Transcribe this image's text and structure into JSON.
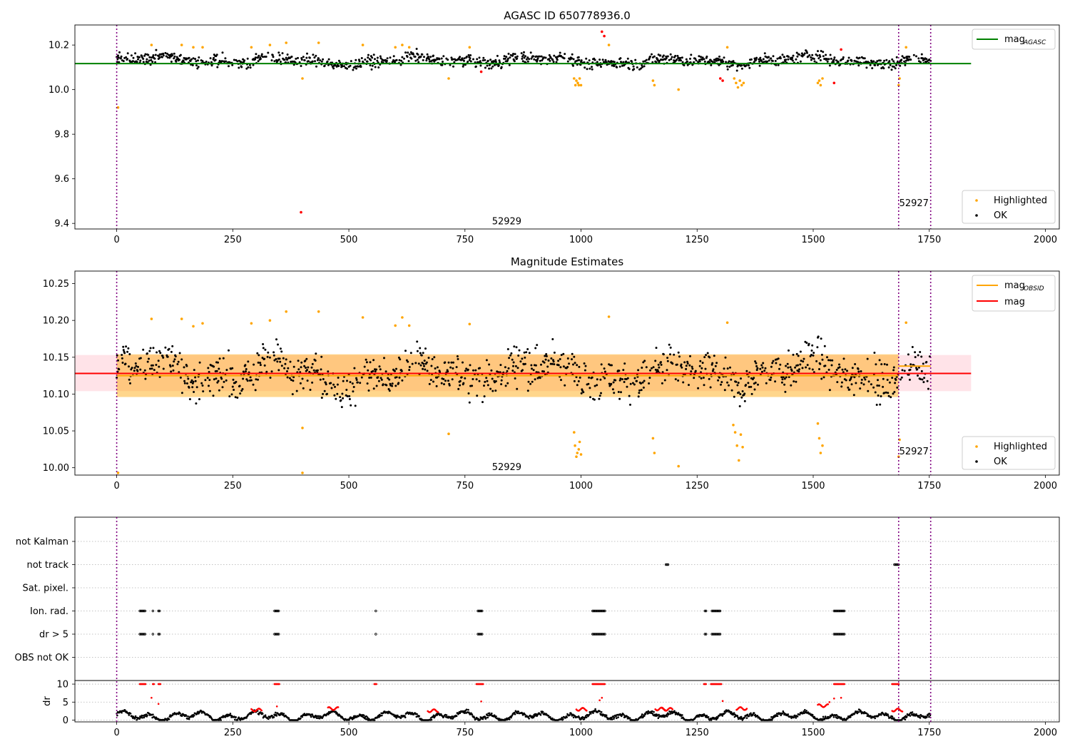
{
  "chart_data": [
    {
      "type": "scatter",
      "title": "AGASC ID 650778936.0",
      "xlim": [
        -90,
        2030
      ],
      "ylim": [
        9.375,
        10.29
      ],
      "xticks": [
        0,
        250,
        500,
        750,
        1000,
        1250,
        1500,
        1750,
        2000
      ],
      "xtick_labels": [
        "0",
        "250",
        "500",
        "750",
        "1000",
        "1250",
        "1500",
        "1750",
        "2000"
      ],
      "yticks": [
        9.4,
        9.6,
        9.8,
        10.0,
        10.2
      ],
      "ytick_labels": [
        "9.4",
        "9.6",
        "9.8",
        "10.0",
        "10.2"
      ],
      "vlines": [
        0,
        1684,
        1753
      ],
      "annotations": [
        {
          "text": "52929",
          "x": 840,
          "y": 9.395
        },
        {
          "text": "52927",
          "x": 1717,
          "y": 9.478
        }
      ],
      "lines": [
        {
          "name": "mag_AGASC",
          "x": [
            -90,
            1840
          ],
          "y": [
            10.117,
            10.117
          ],
          "color": "#008000"
        }
      ],
      "series": [
        {
          "name": "OK",
          "color": "#000000",
          "center": 10.13,
          "noise": 0.028
        },
        {
          "name": "Highlighted",
          "color": "#ffa500",
          "x": [
            3,
            75,
            140,
            165,
            185,
            290,
            330,
            365,
            400,
            435,
            530,
            600,
            615,
            630,
            715,
            760,
            985,
            988,
            990,
            993,
            995,
            997,
            1000,
            1060,
            1155,
            1158,
            1210,
            1315,
            1330,
            1334,
            1338,
            1342,
            1346,
            1350,
            1510,
            1513,
            1516,
            1520,
            1684,
            1686,
            1700
          ],
          "y": [
            9.92,
            10.2,
            10.2,
            10.19,
            10.19,
            10.19,
            10.2,
            10.21,
            10.05,
            10.21,
            10.2,
            10.19,
            10.2,
            10.19,
            10.05,
            10.19,
            10.05,
            10.02,
            10.04,
            10.03,
            10.02,
            10.05,
            10.02,
            10.2,
            10.04,
            10.02,
            10.0,
            10.19,
            10.05,
            10.03,
            10.01,
            10.04,
            10.02,
            10.03,
            10.03,
            10.04,
            10.02,
            10.05,
            10.02,
            10.05,
            10.19
          ]
        },
        {
          "name": "Highlighted (red)",
          "color": "#ff0000",
          "x": [
            397,
            785,
            1045,
            1050,
            1300,
            1305,
            1545,
            1560
          ],
          "y": [
            9.45,
            10.08,
            10.26,
            10.24,
            10.05,
            10.04,
            10.03,
            10.18
          ]
        }
      ],
      "legend_upper": [
        "mag",
        "AGASC"
      ],
      "legend_lower": [
        "Highlighted",
        "OK"
      ],
      "legend_placement": [
        "upper right",
        "lower right"
      ]
    },
    {
      "type": "scatter",
      "title": "Magnitude Estimates",
      "xlim": [
        -90,
        2030
      ],
      "ylim": [
        9.99,
        10.267
      ],
      "xticks": [
        0,
        250,
        500,
        750,
        1000,
        1250,
        1500,
        1750,
        2000
      ],
      "xtick_labels": [
        "0",
        "250",
        "500",
        "750",
        "1000",
        "1250",
        "1500",
        "1750",
        "2000"
      ],
      "yticks": [
        10.0,
        10.05,
        10.1,
        10.15,
        10.2,
        10.25
      ],
      "ytick_labels": [
        "10.00",
        "10.05",
        "10.10",
        "10.15",
        "10.20",
        "10.25"
      ],
      "vlines": [
        0,
        1684,
        1753
      ],
      "annotations": [
        {
          "text": "52929",
          "x": 840,
          "y": 9.997
        },
        {
          "text": "52927",
          "x": 1717,
          "y": 10.018
        }
      ],
      "bands": [
        {
          "x": [
            -90,
            1840
          ],
          "y": [
            10.104,
            10.153
          ],
          "color": "#ffc0cb"
        },
        {
          "x": [
            0,
            1684
          ],
          "y": [
            10.096,
            10.154
          ],
          "color": "#ffa500"
        }
      ],
      "lines": [
        {
          "name": "mag",
          "x": [
            -90,
            1840
          ],
          "y": [
            10.128,
            10.128
          ],
          "color": "#ff0000"
        },
        {
          "name": "mag_OBSID",
          "x": [
            0,
            1684
          ],
          "y": [
            10.125,
            10.125
          ],
          "color": "#ffa500"
        },
        {
          "name": "mag_OBSID",
          "x": [
            1684,
            1753
          ],
          "y": [
            10.138,
            10.138
          ],
          "color": "#ffa500"
        }
      ],
      "series": [
        {
          "name": "OK",
          "color": "#000000",
          "center": 10.128,
          "noise": 0.028
        },
        {
          "name": "Highlighted",
          "color": "#ffa500",
          "x": [
            3,
            75,
            140,
            165,
            185,
            290,
            330,
            365,
            400,
            400,
            435,
            530,
            600,
            615,
            630,
            715,
            760,
            985,
            987,
            990,
            992,
            995,
            997,
            1000,
            1060,
            1155,
            1158,
            1210,
            1315,
            1328,
            1332,
            1336,
            1340,
            1344,
            1348,
            1510,
            1513,
            1516,
            1520,
            1684,
            1686,
            1700
          ],
          "y": [
            9.993,
            10.202,
            10.202,
            10.192,
            10.196,
            10.196,
            10.2,
            10.212,
            10.054,
            9.993,
            10.212,
            10.204,
            10.193,
            10.204,
            10.193,
            10.046,
            10.195,
            10.048,
            10.03,
            10.015,
            10.02,
            10.025,
            10.035,
            10.018,
            10.205,
            10.04,
            10.02,
            10.002,
            10.197,
            10.058,
            10.048,
            10.03,
            10.01,
            10.045,
            10.028,
            10.06,
            10.04,
            10.02,
            10.03,
            10.015,
            10.038,
            10.197
          ]
        }
      ],
      "legend_upper": [
        "mag",
        "OBSID",
        "mag"
      ],
      "legend_lower": [
        "Highlighted",
        "OK"
      ],
      "legend_placement": [
        "upper right",
        "lower right"
      ]
    },
    {
      "type": "scatter",
      "title": "",
      "xlim": [
        -90,
        2030
      ],
      "xticks": [
        0,
        250,
        500,
        750,
        1000,
        1250,
        1500,
        1750,
        2000
      ],
      "xtick_labels": [
        "0",
        "250",
        "500",
        "750",
        "1000",
        "1250",
        "1500",
        "1750",
        "2000"
      ],
      "flag_rows": [
        "not Kalman",
        "not track",
        "Sat. pixel.",
        "Ion. rad.",
        "dr > 5",
        "OBS not OK"
      ],
      "vlines": [
        0,
        1684,
        1753
      ],
      "flag_points": {
        "not track": [
          [
            1183,
            1188
          ],
          [
            1675,
            1685
          ]
        ],
        "Ion. rad.": [
          [
            50,
            62
          ],
          [
            78,
            80
          ],
          [
            90,
            94
          ],
          [
            340,
            350
          ],
          [
            558,
            560
          ],
          [
            778,
            788
          ],
          [
            1025,
            1052
          ],
          [
            1267,
            1270
          ],
          [
            1282,
            1300
          ],
          [
            1545,
            1568
          ]
        ],
        "dr > 5": [
          [
            50,
            62
          ],
          [
            78,
            80
          ],
          [
            90,
            94
          ],
          [
            340,
            350
          ],
          [
            558,
            560
          ],
          [
            778,
            788
          ],
          [
            1025,
            1052
          ],
          [
            1267,
            1270
          ],
          [
            1282,
            1300
          ],
          [
            1545,
            1568
          ]
        ]
      },
      "dr": {
        "ylabel": "dr",
        "ylim": [
          -0.5,
          11
        ],
        "yticks": [
          0,
          5,
          10
        ],
        "ytick_labels": [
          "0",
          "5",
          "10"
        ],
        "red_ranges": [
          [
            50,
            62
          ],
          [
            78,
            80
          ],
          [
            90,
            94
          ],
          [
            340,
            350
          ],
          [
            555,
            560
          ],
          [
            775,
            790
          ],
          [
            1025,
            1052
          ],
          [
            1265,
            1270
          ],
          [
            1280,
            1302
          ],
          [
            1545,
            1568
          ],
          [
            1670,
            1685
          ]
        ],
        "outliers": [
          [
            75,
            6.2
          ],
          [
            90,
            4.5
          ],
          [
            345,
            3.8
          ],
          [
            785,
            5.2
          ],
          [
            1040,
            5.5
          ],
          [
            1045,
            6.2
          ],
          [
            1305,
            5.3
          ],
          [
            1545,
            6.0
          ],
          [
            1560,
            6.2
          ],
          [
            1535,
            5.0
          ]
        ]
      }
    }
  ]
}
